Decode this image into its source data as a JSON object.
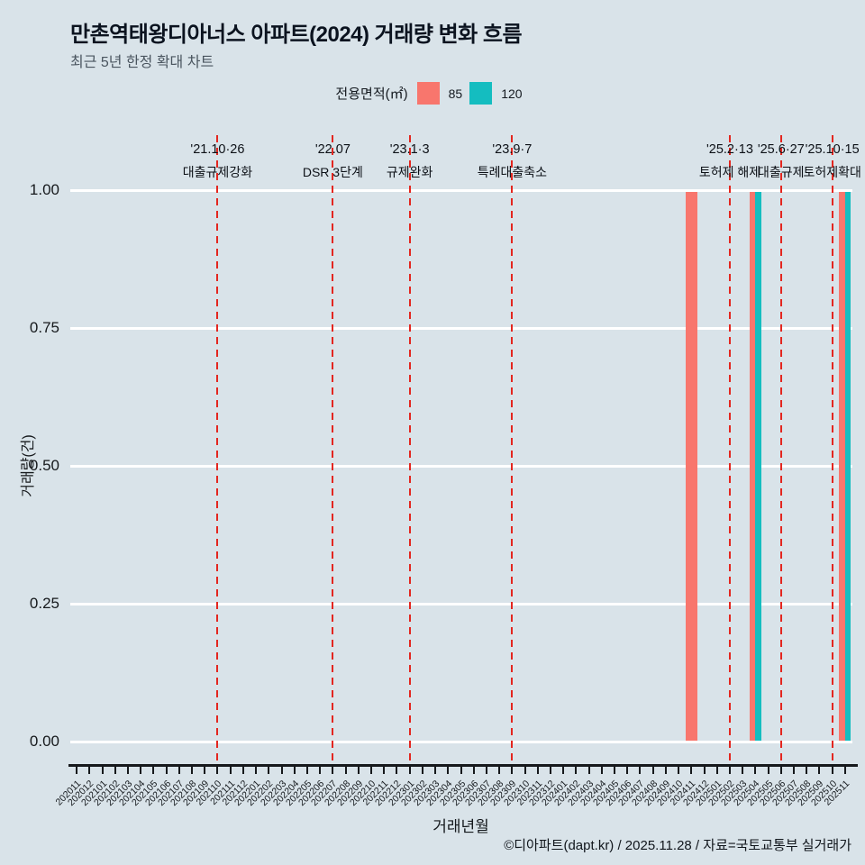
{
  "header": {
    "title": "만촌역태왕디아너스 아파트(2024) 거래량 변화 흐름",
    "subtitle": "최근 5년 한정 확대 차트"
  },
  "legend": {
    "title": "전용면적(㎡)",
    "items": [
      {
        "label": "85",
        "color": "#f8766d"
      },
      {
        "label": "120",
        "color": "#14bdc0"
      }
    ]
  },
  "footer": {
    "caption": "©디아파트(dapt.kr) / 2025.11.28 / 자료=국토교통부 실거래가"
  },
  "chart_data": {
    "type": "bar",
    "title": "만촌역태왕디아너스 아파트(2024) 거래량 변화 흐름",
    "subtitle": "최근 5년 한정 확대 차트",
    "xlabel": "거래년월",
    "ylabel": "거래량(건)",
    "ylim": [
      0,
      1
    ],
    "grid": true,
    "legend_position": "top",
    "legend_title": "전용면적(㎡)",
    "yticks": [
      {
        "value": 0.0,
        "label": "0.00"
      },
      {
        "value": 0.25,
        "label": "0.25"
      },
      {
        "value": 0.5,
        "label": "0.50"
      },
      {
        "value": 0.75,
        "label": "0.75"
      },
      {
        "value": 1.0,
        "label": "1.00"
      }
    ],
    "categories": [
      "202011",
      "202012",
      "202101",
      "202102",
      "202103",
      "202104",
      "202105",
      "202106",
      "202107",
      "202108",
      "202109",
      "202110",
      "202111",
      "202112",
      "202201",
      "202202",
      "202203",
      "202204",
      "202205",
      "202206",
      "202207",
      "202208",
      "202209",
      "202210",
      "202211",
      "202212",
      "202301",
      "202302",
      "202303",
      "202304",
      "202305",
      "202306",
      "202307",
      "202308",
      "202309",
      "202310",
      "202311",
      "202312",
      "202401",
      "202402",
      "202403",
      "202404",
      "202405",
      "202406",
      "202407",
      "202408",
      "202409",
      "202410",
      "202411",
      "202412",
      "202501",
      "202502",
      "202503",
      "202504",
      "202505",
      "202506",
      "202507",
      "202508",
      "202509",
      "202510",
      "202511"
    ],
    "series": [
      {
        "name": "85",
        "color": "#f8766d",
        "values": {
          "202411": 1,
          "202504": 1,
          "202511": 1
        }
      },
      {
        "name": "120",
        "color": "#14bdc0",
        "values": {
          "202504": 1,
          "202511": 1
        }
      }
    ],
    "events": [
      {
        "month": "202110",
        "date": "'21.10·26",
        "label": "대출규제강화"
      },
      {
        "month": "202207",
        "date": "'22.07",
        "label": "DSR 3단계"
      },
      {
        "month": "202301",
        "date": "'23.1·3",
        "label": "규제완화"
      },
      {
        "month": "202309",
        "date": "'23.9·7",
        "label": "특례대출축소"
      },
      {
        "month": "202502",
        "date": "'25.2·13",
        "label": "토허제 해제"
      },
      {
        "month": "202506",
        "date": "'25.6·27",
        "label": "대출규제"
      },
      {
        "month": "202510",
        "date": "'25.10·15",
        "label": "토허제확대"
      }
    ],
    "event_line_color": "#e3261f"
  }
}
